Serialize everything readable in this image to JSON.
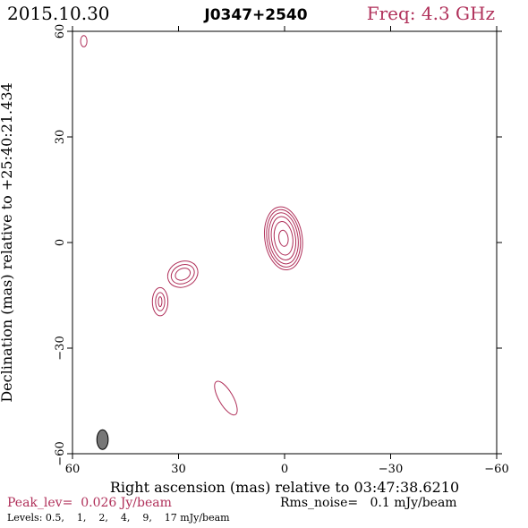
{
  "header": {
    "date": "2015.10.30",
    "source": "J0347+2540",
    "freq": "Freq: 4.3 GHz"
  },
  "colors": {
    "contour": "#b0305a",
    "axis": "#000000",
    "beam_fill": "#777777",
    "peak_text": "#b0305a"
  },
  "chart_data": {
    "type": "contour",
    "xlabel": "Right ascension (mas) relative to 03:47:38.6210",
    "ylabel": "Declination (mas) relative to +25:40:21.434",
    "xlim": [
      60,
      -60
    ],
    "ylim": [
      -60,
      60
    ],
    "x_ticks": [
      60,
      30,
      0,
      -30,
      -60
    ],
    "y_ticks": [
      60,
      30,
      0,
      -30,
      -60
    ],
    "x_tick_labels": [
      "60",
      "30",
      "0",
      "−30",
      "−60"
    ],
    "y_tick_labels": [
      "60",
      "30",
      "0",
      "−30",
      "−60"
    ],
    "levels_mjy": [
      0.5,
      1,
      2,
      4,
      9,
      17
    ],
    "components": [
      {
        "center": [
          0.3,
          1.2
        ],
        "contours": [
          {
            "rx": 5.3,
            "ry": 9.0,
            "angle": -8
          },
          {
            "rx": 4.7,
            "ry": 8.2,
            "angle": -8
          },
          {
            "rx": 4.1,
            "ry": 7.3,
            "angle": -8
          },
          {
            "rx": 3.4,
            "ry": 6.2,
            "angle": -8
          },
          {
            "rx": 2.6,
            "ry": 4.8,
            "angle": -8
          },
          {
            "rx": 1.3,
            "ry": 2.3,
            "angle": -8
          }
        ]
      },
      {
        "center": [
          28.8,
          -9.0
        ],
        "contours": [
          {
            "rx": 4.4,
            "ry": 3.6,
            "angle": -25
          },
          {
            "rx": 3.4,
            "ry": 2.6,
            "angle": -25
          },
          {
            "rx": 2.2,
            "ry": 1.6,
            "angle": -25
          }
        ]
      },
      {
        "center": [
          35.2,
          -16.8
        ],
        "contours": [
          {
            "rx": 2.2,
            "ry": 4.0,
            "angle": 0
          },
          {
            "rx": 1.3,
            "ry": 2.6,
            "angle": 0
          },
          {
            "rx": 0.5,
            "ry": 1.4,
            "angle": 0
          }
        ]
      },
      {
        "center": [
          16.6,
          -44.2
        ],
        "contours": [
          {
            "rx": 2.0,
            "ry": 5.4,
            "angle": -30
          }
        ]
      },
      {
        "center": [
          56.8,
          57.2
        ],
        "contours": [
          {
            "rx": 0.9,
            "ry": 1.6,
            "angle": 0
          }
        ]
      }
    ],
    "beam": {
      "center": [
        51.5,
        -56.0
      ],
      "rx": 1.6,
      "ry": 2.8,
      "angle": 0
    },
    "peak_label": "Peak_lev=  0.026 Jy/beam",
    "noise_label": "Rms_noise=   0.1 mJy/beam",
    "levels_label": "Levels: 0.5,    1,    2,    4,    9,    17 mJy/beam"
  }
}
